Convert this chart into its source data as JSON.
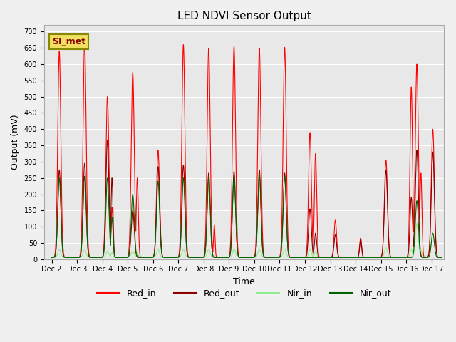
{
  "title": "LED NDVI Sensor Output",
  "xlabel": "Time",
  "ylabel": "Output (mV)",
  "ylim": [
    0,
    720
  ],
  "yticks": [
    0,
    50,
    100,
    150,
    200,
    250,
    300,
    350,
    400,
    450,
    500,
    550,
    600,
    650,
    700
  ],
  "xtick_labels": [
    "Dec 2",
    "Dec 3",
    "Dec 4",
    "Dec 5",
    "Dec 6",
    "Dec 7",
    "Dec 8",
    "Dec 9",
    "Dec 10",
    "Dec 11",
    "Dec 12",
    "Dec 13",
    "Dec 14",
    "Dec 15",
    "Dec 16",
    "Dec 17"
  ],
  "ax_bg_color": "#e8e8e8",
  "fig_bg_color": "#f0f0f0",
  "watermark_text": "SI_met",
  "watermark_bg": "#f0e060",
  "watermark_fg": "#8b0000",
  "colors": {
    "Red_in": "#ff0000",
    "Red_out": "#8b0000",
    "Nir_in": "#90ee90",
    "Nir_out": "#006400"
  },
  "pulses": [
    [
      0.3,
      640,
      275,
      30,
      250,
      0.06
    ],
    [
      1.3,
      670,
      295,
      30,
      255,
      0.06
    ],
    [
      2.2,
      500,
      365,
      25,
      250,
      0.06
    ],
    [
      2.38,
      160,
      250,
      20,
      130,
      0.04
    ],
    [
      3.2,
      575,
      150,
      25,
      200,
      0.06
    ],
    [
      3.38,
      250,
      5,
      20,
      10,
      0.04
    ],
    [
      4.2,
      335,
      285,
      30,
      240,
      0.06
    ],
    [
      5.2,
      660,
      290,
      30,
      250,
      0.06
    ],
    [
      6.2,
      650,
      265,
      30,
      250,
      0.06
    ],
    [
      6.42,
      105,
      5,
      10,
      5,
      0.03
    ],
    [
      7.2,
      655,
      270,
      30,
      255,
      0.06
    ],
    [
      8.2,
      650,
      275,
      30,
      260,
      0.06
    ],
    [
      9.2,
      652,
      265,
      30,
      255,
      0.06
    ],
    [
      10.2,
      390,
      155,
      30,
      5,
      0.055
    ],
    [
      10.42,
      325,
      80,
      25,
      5,
      0.045
    ],
    [
      11.2,
      120,
      75,
      5,
      5,
      0.05
    ],
    [
      12.2,
      65,
      60,
      5,
      5,
      0.04
    ],
    [
      13.2,
      305,
      275,
      35,
      5,
      0.06
    ],
    [
      14.2,
      530,
      190,
      30,
      5,
      0.05
    ],
    [
      14.42,
      600,
      335,
      110,
      180,
      0.06
    ],
    [
      14.58,
      265,
      5,
      30,
      5,
      0.04
    ],
    [
      15.05,
      400,
      330,
      80,
      80,
      0.06
    ]
  ]
}
